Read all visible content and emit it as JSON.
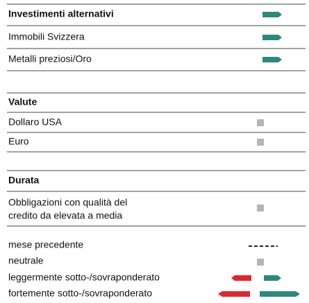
{
  "sections": [
    {
      "title": "Investimenti alternativi",
      "rows": [
        {
          "label": [
            "Immobili Svizzera"
          ]
        },
        {
          "label": [
            "Metalli preziosi/Oro"
          ]
        }
      ]
    },
    {
      "title": "Valute",
      "rows": [
        {
          "label": [
            "Dollaro USA"
          ]
        },
        {
          "label": [
            "Euro"
          ]
        }
      ]
    },
    {
      "title": "Durata",
      "rows": [
        {
          "label": [
            "Obbligazioni con qualità del",
            "credito da elevata a media"
          ]
        }
      ]
    }
  ],
  "legend": [
    "mese precedente",
    "neutrale",
    "leggermente sotto-/sovraponderato",
    "fortemente sotto-/sovraponderato"
  ]
}
